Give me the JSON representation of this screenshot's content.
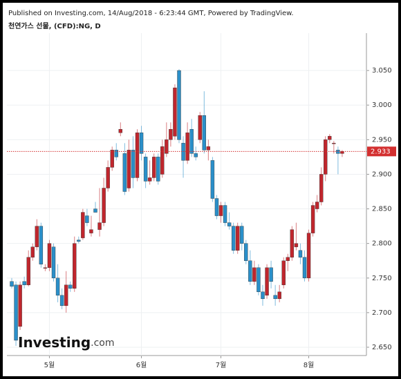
{
  "published": "Published on Investing.com, 14/Aug/2018 - 6:23:44 GMT, Powered by TradingView.",
  "chart_data": {
    "type": "candlestick",
    "title": "천연가스 선물, (CFD):NG, D",
    "categories": [
      null,
      null,
      null,
      null,
      null,
      null,
      null,
      null,
      null,
      "5월",
      null,
      null,
      null,
      null,
      null,
      null,
      null,
      null,
      null,
      null,
      null,
      null,
      null,
      null,
      null,
      null,
      null,
      null,
      null,
      null,
      null,
      "6월",
      null,
      null,
      null,
      null,
      null,
      null,
      null,
      null,
      null,
      null,
      null,
      null,
      null,
      null,
      null,
      null,
      null,
      null,
      "7월",
      null,
      null,
      null,
      null,
      null,
      null,
      null,
      null,
      null,
      null,
      null,
      null,
      null,
      null,
      null,
      null,
      null,
      null,
      null,
      null,
      "8월",
      null,
      null,
      null,
      null,
      null,
      null,
      null,
      null
    ],
    "open": [
      2.745,
      2.74,
      2.68,
      2.745,
      2.74,
      2.78,
      2.795,
      2.825,
      2.765,
      2.765,
      2.795,
      2.75,
      2.725,
      2.71,
      2.74,
      2.735,
      2.805,
      2.808,
      2.84,
      2.815,
      2.85,
      2.82,
      2.83,
      2.88,
      2.91,
      2.935,
      2.96,
      2.93,
      2.88,
      2.935,
      2.895,
      2.96,
      2.925,
      2.89,
      2.895,
      2.925,
      2.9,
      2.93,
      2.95,
      2.955,
      3.05,
      2.945,
      2.92,
      2.965,
      2.93,
      2.95,
      2.985,
      2.935,
      2.92,
      2.865,
      2.84,
      2.855,
      2.83,
      2.825,
      2.79,
      2.825,
      2.8,
      2.775,
      2.745,
      2.765,
      2.73,
      2.725,
      2.765,
      2.725,
      2.72,
      2.74,
      2.775,
      2.78,
      2.795,
      2.79,
      2.78,
      2.75,
      2.815,
      2.85,
      2.86,
      2.9,
      2.95,
      2.945,
      2.935,
      2.93
    ],
    "high": [
      2.75,
      2.745,
      2.745,
      2.752,
      2.79,
      2.8,
      2.835,
      2.83,
      2.77,
      2.805,
      2.8,
      2.77,
      2.735,
      2.76,
      2.745,
      2.81,
      2.81,
      2.85,
      2.85,
      2.84,
      2.86,
      2.88,
      2.895,
      2.92,
      2.94,
      2.945,
      2.975,
      2.945,
      2.95,
      2.955,
      2.965,
      2.97,
      2.93,
      2.92,
      2.93,
      2.93,
      2.95,
      2.975,
      2.975,
      3.03,
      3.052,
      2.955,
      2.975,
      2.98,
      2.94,
      2.99,
      3.02,
      2.95,
      2.925,
      2.87,
      2.86,
      2.86,
      2.845,
      2.83,
      2.83,
      2.83,
      2.805,
      2.79,
      2.775,
      2.77,
      2.74,
      2.77,
      2.775,
      2.74,
      2.74,
      2.78,
      2.785,
      2.825,
      2.83,
      2.8,
      2.79,
      2.82,
      2.86,
      2.87,
      2.91,
      2.955,
      2.958,
      2.948,
      2.94,
      2.935
    ],
    "low": [
      2.735,
      2.652,
      2.675,
      2.735,
      2.738,
      2.775,
      2.79,
      2.765,
      2.76,
      2.76,
      2.745,
      2.715,
      2.705,
      2.7,
      2.73,
      2.73,
      2.8,
      2.805,
      2.825,
      2.81,
      2.845,
      2.81,
      2.825,
      2.875,
      2.905,
      2.92,
      2.955,
      2.87,
      2.875,
      2.88,
      2.89,
      2.92,
      2.88,
      2.885,
      2.89,
      2.885,
      2.895,
      2.925,
      2.94,
      2.95,
      2.945,
      2.895,
      2.915,
      2.925,
      2.92,
      2.945,
      2.93,
      2.92,
      2.86,
      2.835,
      2.83,
      2.825,
      2.82,
      2.785,
      2.785,
      2.79,
      2.77,
      2.74,
      2.74,
      2.725,
      2.71,
      2.72,
      2.735,
      2.71,
      2.715,
      2.735,
      2.76,
      2.775,
      2.79,
      2.77,
      2.745,
      2.745,
      2.81,
      2.845,
      2.855,
      2.89,
      2.945,
      2.93,
      2.9,
      2.925
    ],
    "close": [
      2.738,
      2.66,
      2.74,
      2.74,
      2.78,
      2.795,
      2.825,
      2.77,
      2.765,
      2.8,
      2.75,
      2.725,
      2.71,
      2.74,
      2.735,
      2.8,
      2.803,
      2.845,
      2.83,
      2.82,
      2.845,
      2.83,
      2.88,
      2.91,
      2.935,
      2.925,
      2.965,
      2.875,
      2.935,
      2.895,
      2.96,
      2.93,
      2.89,
      2.895,
      2.925,
      2.89,
      2.94,
      2.95,
      2.965,
      3.025,
      2.95,
      2.92,
      2.96,
      2.93,
      2.925,
      2.985,
      2.935,
      2.94,
      2.865,
      2.84,
      2.855,
      2.83,
      2.825,
      2.79,
      2.825,
      2.8,
      2.775,
      2.745,
      2.765,
      2.73,
      2.72,
      2.765,
      2.745,
      2.72,
      2.73,
      2.775,
      2.78,
      2.82,
      2.8,
      2.78,
      2.75,
      2.815,
      2.855,
      2.86,
      2.9,
      2.95,
      2.955,
      2.945,
      2.93,
      2.933
    ],
    "up_color": "#c0262d",
    "down_color": "#2a8fc9",
    "last_price": 2.933,
    "last_color": "#d32f2f",
    "ylim": [
      2.638,
      3.104
    ],
    "yticks": [
      {
        "value": 2.65,
        "label": "2.650"
      },
      {
        "value": 2.7,
        "label": "2.700"
      },
      {
        "value": 2.75,
        "label": "2.750"
      },
      {
        "value": 2.8,
        "label": "2.800"
      },
      {
        "value": 2.85,
        "label": "2.850"
      },
      {
        "value": 2.9,
        "label": "2.900"
      },
      {
        "value": 2.95,
        "label": "2.950"
      },
      {
        "value": 3.0,
        "label": "3.000"
      },
      {
        "value": 3.05,
        "label": "3.050"
      }
    ],
    "grid": true,
    "watermark": {
      "brand": "Investing",
      "suffix": ".com"
    }
  }
}
